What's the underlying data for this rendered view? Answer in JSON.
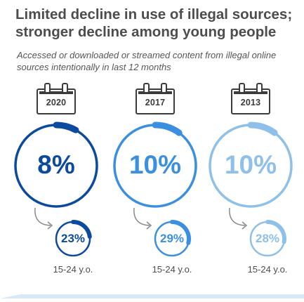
{
  "title": "Limited decline in use of illegal sources;\nstronger decline among young people",
  "subtitle": "Accessed or downloaded or streamed content from illegal online sources intentionally in last 12 months",
  "colors": {
    "y2020": "#0b4a9e",
    "y2017": "#3b8fe0",
    "y2013": "#8ec0ea",
    "text": "#4d4d4d"
  },
  "chart_data": {
    "type": "gauge",
    "title": "Limited decline in use of illegal sources; stronger decline among young people",
    "subtitle": "Accessed or downloaded or streamed content from illegal online sources intentionally in last 12 months",
    "categories": [
      "2020",
      "2017",
      "2013"
    ],
    "series": [
      {
        "name": "",
        "labels": [
          "8%",
          "10%",
          "10%"
        ],
        "values": [
          8,
          10,
          10
        ]
      },
      {
        "name": "15-24 y.o.",
        "labels": [
          "23%",
          "29%",
          "28%"
        ],
        "values": [
          23,
          29,
          28
        ]
      }
    ]
  }
}
